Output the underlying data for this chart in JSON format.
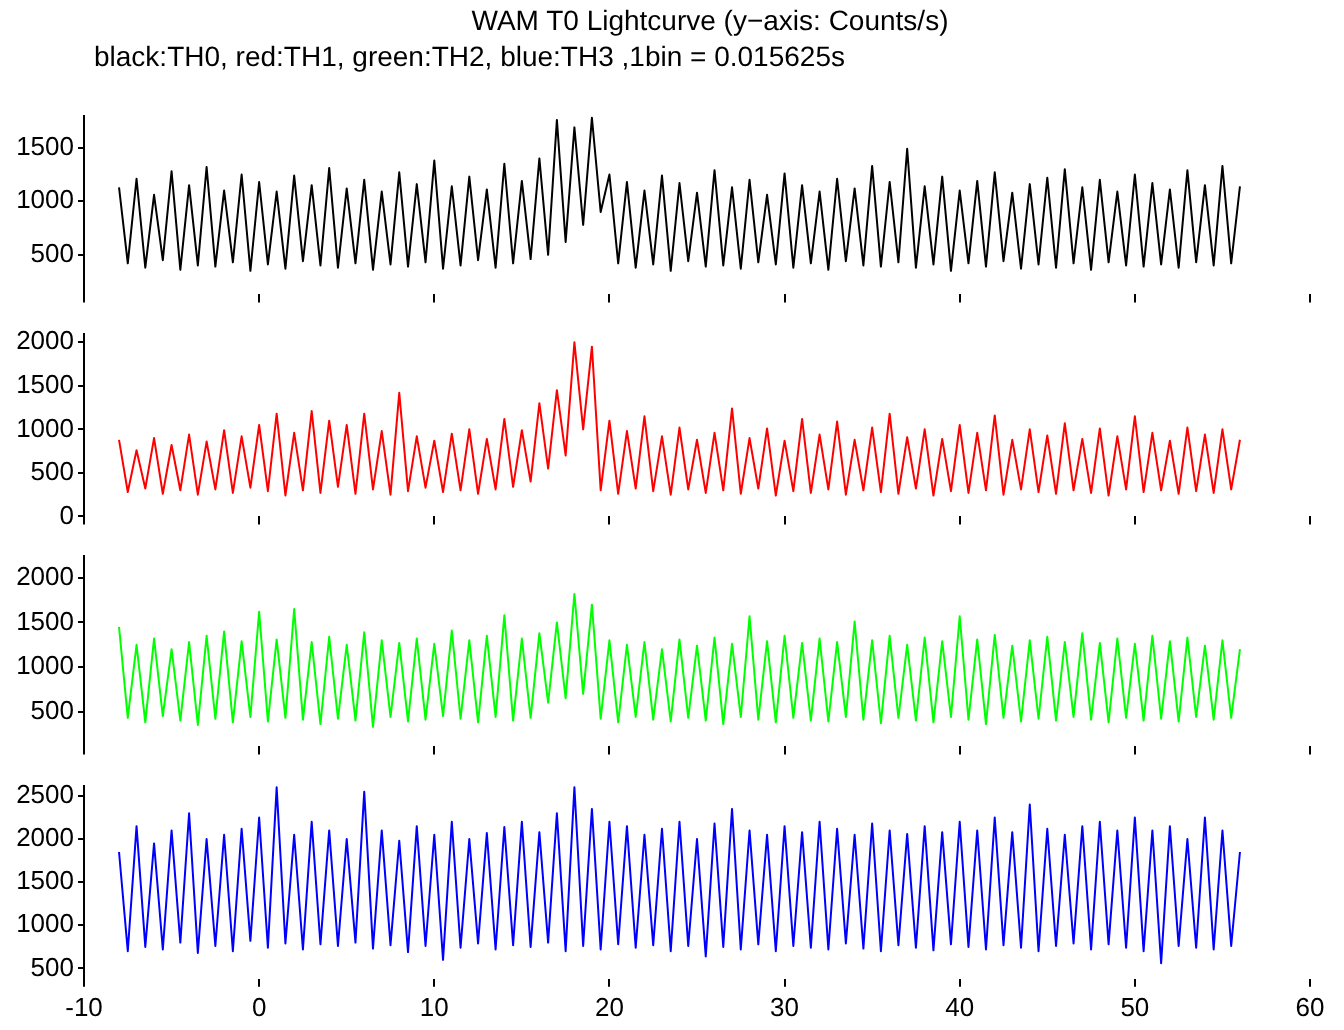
{
  "chart_data": [
    {
      "type": "line",
      "title": "WAM T0 Lightcurve (y−axis: Counts/s)",
      "subtitle": "black:TH0, red:TH1, green:TH2, blue:TH3 ,1bin = 0.015625s",
      "x": [
        -8,
        -7.5,
        -7,
        -6.5,
        -6,
        -5.5,
        -5,
        -4.5,
        -4,
        -3.5,
        -3,
        -2.5,
        -2,
        -1.5,
        -1,
        -0.5,
        0,
        0.5,
        1,
        1.5,
        2,
        2.5,
        3,
        3.5,
        4,
        4.5,
        5,
        5.5,
        6,
        6.5,
        7,
        7.5,
        8,
        8.5,
        9,
        9.5,
        10,
        10.5,
        11,
        11.5,
        12,
        12.5,
        13,
        13.5,
        14,
        14.5,
        15,
        15.5,
        16,
        16.5,
        17,
        17.5,
        18,
        18.5,
        19,
        19.5,
        20,
        20.5,
        21,
        21.5,
        22,
        22.5,
        23,
        23.5,
        24,
        24.5,
        25,
        25.5,
        26,
        26.5,
        27,
        27.5,
        28,
        28.5,
        29,
        29.5,
        30,
        30.5,
        31,
        31.5,
        32,
        32.5,
        33,
        33.5,
        34,
        34.5,
        35,
        35.5,
        36,
        36.5,
        37,
        37.5,
        38,
        38.5,
        39,
        39.5,
        40,
        40.5,
        41,
        41.5,
        42,
        42.5,
        43,
        43.5,
        44,
        44.5,
        45,
        45.5,
        46,
        46.5,
        47,
        47.5,
        48,
        48.5,
        49,
        49.5,
        50,
        50.5,
        51,
        51.5,
        52,
        52.5,
        53,
        53.5,
        54,
        54.5,
        55,
        55.5,
        56
      ],
      "series": [
        {
          "color": "#000000",
          "values": [
            1130,
            420,
            1210,
            380,
            1060,
            450,
            1280,
            360,
            1150,
            400,
            1320,
            390,
            1100,
            430,
            1250,
            350,
            1180,
            410,
            1090,
            370,
            1240,
            440,
            1150,
            400,
            1310,
            380,
            1120,
            420,
            1200,
            360,
            1090,
            410,
            1270,
            390,
            1160,
            430,
            1380,
            370,
            1140,
            400,
            1230,
            450,
            1110,
            380,
            1350,
            420,
            1190,
            460,
            1400,
            500,
            1760,
            620,
            1690,
            780,
            1780,
            900,
            1250,
            420,
            1180,
            380,
            1100,
            410,
            1240,
            350,
            1170,
            440,
            1080,
            390,
            1290,
            400,
            1130,
            370,
            1200,
            430,
            1060,
            410,
            1260,
            380,
            1150,
            420,
            1090,
            360,
            1210,
            440,
            1120,
            400,
            1330,
            390,
            1180,
            430,
            1490,
            380,
            1140,
            410,
            1230,
            350,
            1100,
            420,
            1190,
            390,
            1270,
            440,
            1080,
            370,
            1160,
            410,
            1220,
            380,
            1300,
            420,
            1130,
            360,
            1200,
            430,
            1090,
            400,
            1250,
            390,
            1170,
            410,
            1110,
            380,
            1290,
            430,
            1150,
            400,
            1330,
            420,
            1140
          ]
        }
      ],
      "xlim": [
        -10,
        60
      ],
      "xticks": [
        -10,
        0,
        10,
        20,
        30,
        40,
        50,
        60
      ],
      "ylim": [
        130,
        1800
      ],
      "yticks": [
        500,
        1000,
        1500
      ],
      "tick_labels": "y"
    },
    {
      "type": "line",
      "x": [
        -8,
        -7.5,
        -7,
        -6.5,
        -6,
        -5.5,
        -5,
        -4.5,
        -4,
        -3.5,
        -3,
        -2.5,
        -2,
        -1.5,
        -1,
        -0.5,
        0,
        0.5,
        1,
        1.5,
        2,
        2.5,
        3,
        3.5,
        4,
        4.5,
        5,
        5.5,
        6,
        6.5,
        7,
        7.5,
        8,
        8.5,
        9,
        9.5,
        10,
        10.5,
        11,
        11.5,
        12,
        12.5,
        13,
        13.5,
        14,
        14.5,
        15,
        15.5,
        16,
        16.5,
        17,
        17.5,
        18,
        18.5,
        19,
        19.5,
        20,
        20.5,
        21,
        21.5,
        22,
        22.5,
        23,
        23.5,
        24,
        24.5,
        25,
        25.5,
        26,
        26.5,
        27,
        27.5,
        28,
        28.5,
        29,
        29.5,
        30,
        30.5,
        31,
        31.5,
        32,
        32.5,
        33,
        33.5,
        34,
        34.5,
        35,
        35.5,
        36,
        36.5,
        37,
        37.5,
        38,
        38.5,
        39,
        39.5,
        40,
        40.5,
        41,
        41.5,
        42,
        42.5,
        43,
        43.5,
        44,
        44.5,
        45,
        45.5,
        46,
        46.5,
        47,
        47.5,
        48,
        48.5,
        49,
        49.5,
        50,
        50.5,
        51,
        51.5,
        52,
        52.5,
        53,
        53.5,
        54,
        54.5,
        55,
        55.5,
        56
      ],
      "series": [
        {
          "color": "#ff0000",
          "values": [
            880,
            280,
            760,
            320,
            900,
            260,
            820,
            300,
            940,
            250,
            860,
            310,
            990,
            270,
            920,
            330,
            1050,
            290,
            1180,
            240,
            960,
            300,
            1210,
            270,
            1100,
            340,
            1050,
            260,
            1180,
            310,
            980,
            250,
            1420,
            290,
            920,
            330,
            870,
            280,
            950,
            300,
            1000,
            260,
            890,
            310,
            1120,
            340,
            990,
            400,
            1300,
            550,
            1450,
            700,
            2000,
            1000,
            1950,
            300,
            1100,
            260,
            980,
            320,
            1150,
            290,
            920,
            250,
            1020,
            310,
            880,
            270,
            960,
            300,
            1240,
            260,
            900,
            320,
            1010,
            240,
            870,
            290,
            1120,
            270,
            940,
            310,
            1090,
            250,
            880,
            300,
            1020,
            280,
            1180,
            260,
            910,
            320,
            1000,
            240,
            890,
            290,
            1050,
            270,
            960,
            300,
            1160,
            250,
            880,
            310,
            1000,
            280,
            930,
            260,
            1070,
            300,
            890,
            270,
            1010,
            240,
            920,
            310,
            1150,
            280,
            960,
            300,
            870,
            260,
            1020,
            290,
            940,
            270,
            1000,
            310,
            880
          ]
        }
      ],
      "xlim": [
        -10,
        60
      ],
      "xticks": [
        -10,
        0,
        10,
        20,
        30,
        40,
        50,
        60
      ],
      "ylim": [
        0,
        2100
      ],
      "yticks": [
        0,
        500,
        1000,
        1500,
        2000
      ],
      "tick_labels": "y"
    },
    {
      "type": "line",
      "x": [
        -8,
        -7.5,
        -7,
        -6.5,
        -6,
        -5.5,
        -5,
        -4.5,
        -4,
        -3.5,
        -3,
        -2.5,
        -2,
        -1.5,
        -1,
        -0.5,
        0,
        0.5,
        1,
        1.5,
        2,
        2.5,
        3,
        3.5,
        4,
        4.5,
        5,
        5.5,
        6,
        6.5,
        7,
        7.5,
        8,
        8.5,
        9,
        9.5,
        10,
        10.5,
        11,
        11.5,
        12,
        12.5,
        13,
        13.5,
        14,
        14.5,
        15,
        15.5,
        16,
        16.5,
        17,
        17.5,
        18,
        18.5,
        19,
        19.5,
        20,
        20.5,
        21,
        21.5,
        22,
        22.5,
        23,
        23.5,
        24,
        24.5,
        25,
        25.5,
        26,
        26.5,
        27,
        27.5,
        28,
        28.5,
        29,
        29.5,
        30,
        30.5,
        31,
        31.5,
        32,
        32.5,
        33,
        33.5,
        34,
        34.5,
        35,
        35.5,
        36,
        36.5,
        37,
        37.5,
        38,
        38.5,
        39,
        39.5,
        40,
        40.5,
        41,
        41.5,
        42,
        42.5,
        43,
        43.5,
        44,
        44.5,
        45,
        45.5,
        46,
        46.5,
        47,
        47.5,
        48,
        48.5,
        49,
        49.5,
        50,
        50.5,
        51,
        51.5,
        52,
        52.5,
        53,
        53.5,
        54,
        54.5,
        55,
        55.5,
        56
      ],
      "series": [
        {
          "color": "#00ff00",
          "values": [
            1450,
            430,
            1250,
            380,
            1320,
            450,
            1200,
            400,
            1280,
            350,
            1350,
            420,
            1400,
            380,
            1290,
            440,
            1620,
            390,
            1310,
            430,
            1650,
            410,
            1280,
            360,
            1340,
            420,
            1250,
            400,
            1390,
            330,
            1300,
            440,
            1270,
            390,
            1320,
            410,
            1260,
            450,
            1410,
            420,
            1300,
            380,
            1350,
            440,
            1580,
            400,
            1320,
            430,
            1380,
            600,
            1500,
            650,
            1820,
            700,
            1700,
            420,
            1300,
            380,
            1250,
            440,
            1280,
            410,
            1200,
            390,
            1310,
            430,
            1240,
            400,
            1330,
            360,
            1260,
            440,
            1570,
            410,
            1290,
            380,
            1350,
            430,
            1270,
            400,
            1320,
            390,
            1280,
            440,
            1510,
            410,
            1300,
            370,
            1350,
            430,
            1250,
            400,
            1330,
            380,
            1290,
            440,
            1570,
            410,
            1310,
            360,
            1360,
            430,
            1240,
            390,
            1300,
            420,
            1340,
            400,
            1280,
            440,
            1380,
            410,
            1270,
            380,
            1320,
            430,
            1260,
            400,
            1350,
            420,
            1290,
            390,
            1330,
            440,
            1240,
            410,
            1300,
            430,
            1200
          ]
        }
      ],
      "xlim": [
        -10,
        60
      ],
      "xticks": [
        -10,
        0,
        10,
        20,
        30,
        40,
        50,
        60
      ],
      "ylim": [
        110,
        2250
      ],
      "yticks": [
        500,
        1000,
        1500,
        2000
      ],
      "tick_labels": "y"
    },
    {
      "type": "line",
      "x": [
        -8,
        -7.5,
        -7,
        -6.5,
        -6,
        -5.5,
        -5,
        -4.5,
        -4,
        -3.5,
        -3,
        -2.5,
        -2,
        -1.5,
        -1,
        -0.5,
        0,
        0.5,
        1,
        1.5,
        2,
        2.5,
        3,
        3.5,
        4,
        4.5,
        5,
        5.5,
        6,
        6.5,
        7,
        7.5,
        8,
        8.5,
        9,
        9.5,
        10,
        10.5,
        11,
        11.5,
        12,
        12.5,
        13,
        13.5,
        14,
        14.5,
        15,
        15.5,
        16,
        16.5,
        17,
        17.5,
        18,
        18.5,
        19,
        19.5,
        20,
        20.5,
        21,
        21.5,
        22,
        22.5,
        23,
        23.5,
        24,
        24.5,
        25,
        25.5,
        26,
        26.5,
        27,
        27.5,
        28,
        28.5,
        29,
        29.5,
        30,
        30.5,
        31,
        31.5,
        32,
        32.5,
        33,
        33.5,
        34,
        34.5,
        35,
        35.5,
        36,
        36.5,
        37,
        37.5,
        38,
        38.5,
        39,
        39.5,
        40,
        40.5,
        41,
        41.5,
        42,
        42.5,
        43,
        43.5,
        44,
        44.5,
        45,
        45.5,
        46,
        46.5,
        47,
        47.5,
        48,
        48.5,
        49,
        49.5,
        50,
        50.5,
        51,
        51.5,
        52,
        52.5,
        53,
        53.5,
        54,
        54.5,
        55,
        55.5,
        56
      ],
      "series": [
        {
          "color": "#0000ff",
          "values": [
            1850,
            700,
            2150,
            750,
            1950,
            720,
            2100,
            800,
            2300,
            680,
            2000,
            760,
            2050,
            700,
            2120,
            820,
            2250,
            740,
            2600,
            790,
            2050,
            720,
            2200,
            780,
            2100,
            760,
            2000,
            800,
            2550,
            730,
            2100,
            770,
            1980,
            690,
            2150,
            760,
            2050,
            600,
            2200,
            740,
            2000,
            790,
            2070,
            720,
            2140,
            770,
            2200,
            750,
            2080,
            800,
            2300,
            700,
            2600,
            760,
            2350,
            720,
            2200,
            780,
            2150,
            740,
            2050,
            770,
            2120,
            700,
            2200,
            760,
            2000,
            640,
            2180,
            750,
            2350,
            720,
            2100,
            780,
            2050,
            700,
            2150,
            760,
            2080,
            740,
            2200,
            720,
            2120,
            790,
            2050,
            730,
            2180,
            700,
            2100,
            770,
            2060,
            740,
            2150,
            710,
            2080,
            780,
            2200,
            750,
            2100,
            720,
            2250,
            770,
            2080,
            740,
            2400,
            700,
            2120,
            760,
            2050,
            790,
            2150,
            720,
            2200,
            780,
            2100,
            740,
            2250,
            700,
            2100,
            560,
            2150,
            760,
            2000,
            740,
            2250,
            720,
            2100,
            760,
            1850
          ]
        }
      ],
      "xlim": [
        -10,
        60
      ],
      "xticks": [
        -10,
        0,
        10,
        20,
        30,
        40,
        50,
        60
      ],
      "ylim": [
        380,
        2620
      ],
      "yticks": [
        500,
        1000,
        1500,
        2000,
        2500
      ]
    }
  ]
}
